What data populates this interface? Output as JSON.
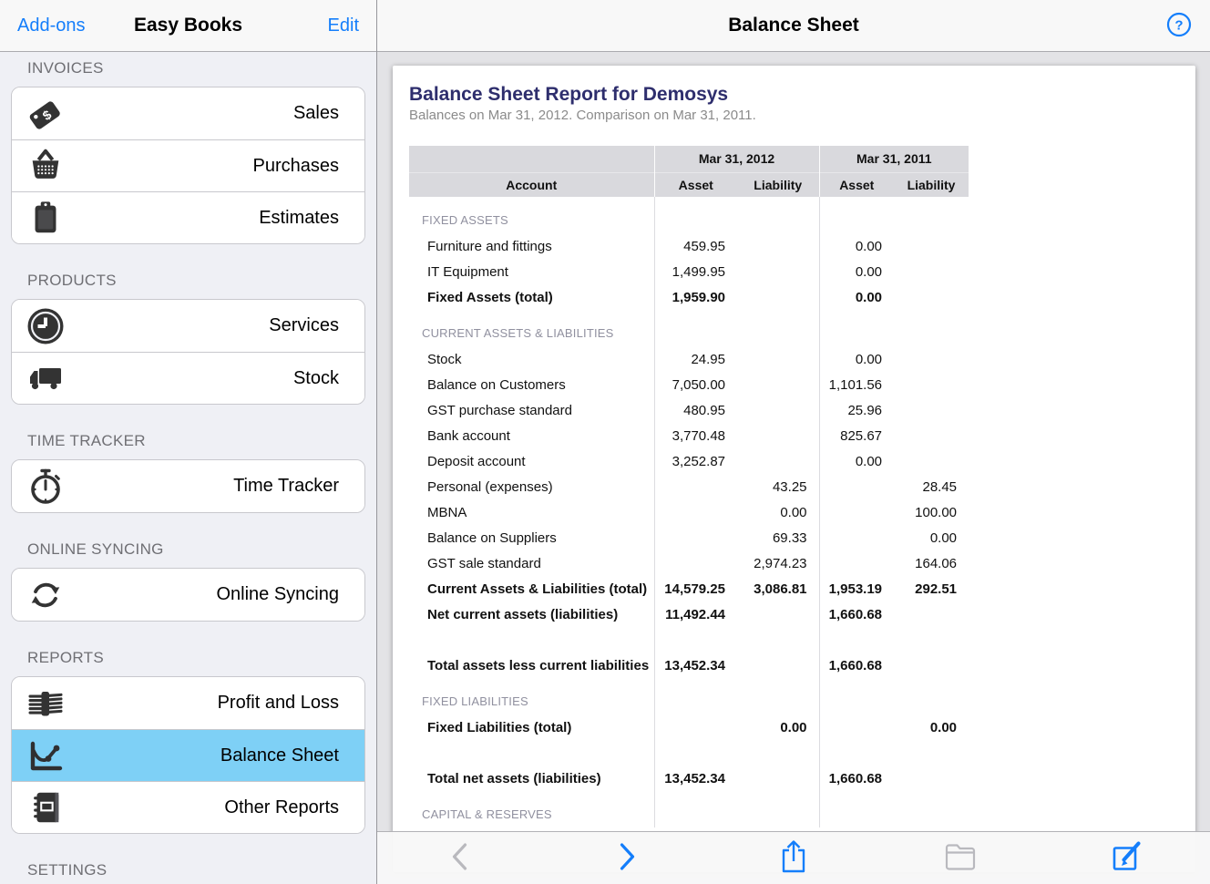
{
  "colors": {
    "accent_blue": "#147efb",
    "selected_row_blue": "#7ed0f6",
    "report_title_navy": "#2e2e6d",
    "table_header_gray": "#d9d9dd",
    "disabled_gray": "#b9b9be"
  },
  "sidebar": {
    "nav": {
      "left_button": "Add-ons",
      "title": "Easy Books",
      "right_button": "Edit"
    },
    "sections": [
      {
        "label": "INVOICES",
        "items": [
          {
            "icon": "price-tag-icon",
            "label": "Sales"
          },
          {
            "icon": "basket-icon",
            "label": "Purchases"
          },
          {
            "icon": "clipboard-icon",
            "label": "Estimates"
          }
        ]
      },
      {
        "label": "PRODUCTS",
        "items": [
          {
            "icon": "clock-icon",
            "label": "Services"
          },
          {
            "icon": "truck-icon",
            "label": "Stock"
          }
        ]
      },
      {
        "label": "TIME TRACKER",
        "items": [
          {
            "icon": "stopwatch-icon",
            "label": "Time Tracker"
          }
        ]
      },
      {
        "label": "ONLINE SYNCING",
        "items": [
          {
            "icon": "sync-icon",
            "label": "Online Syncing"
          }
        ]
      },
      {
        "label": "REPORTS",
        "items": [
          {
            "icon": "banknotes-icon",
            "label": "Profit and Loss"
          },
          {
            "icon": "line-chart-icon",
            "label": "Balance Sheet",
            "selected": true
          },
          {
            "icon": "notebook-icon",
            "label": "Other Reports"
          }
        ]
      },
      {
        "label": "SETTINGS",
        "items": []
      }
    ]
  },
  "main": {
    "nav_title": "Balance Sheet",
    "help_button": {
      "icon": "question-mark-icon",
      "label": "?"
    },
    "report": {
      "title": "Balance Sheet Report for Demosys",
      "subtitle": "Balances on Mar 31, 2012. Comparison on Mar 31, 2011.",
      "table": {
        "period_headers": [
          "Mar 31, 2012",
          "Mar 31, 2011"
        ],
        "column_headers": [
          "Account",
          "Asset",
          "Liability",
          "Asset",
          "Liability"
        ],
        "rows": [
          {
            "type": "section",
            "account": "FIXED ASSETS",
            "values": [
              "",
              "",
              "",
              ""
            ]
          },
          {
            "type": "item",
            "account": "Furniture and fittings",
            "values": [
              "459.95",
              "",
              "0.00",
              ""
            ]
          },
          {
            "type": "item",
            "account": "IT Equipment",
            "values": [
              "1,499.95",
              "",
              "0.00",
              ""
            ]
          },
          {
            "type": "total",
            "account": "Fixed Assets (total)",
            "values": [
              "1,959.90",
              "",
              "0.00",
              ""
            ]
          },
          {
            "type": "section",
            "account": "CURRENT ASSETS & LIABILITIES",
            "values": [
              "",
              "",
              "",
              ""
            ]
          },
          {
            "type": "item",
            "account": "Stock",
            "values": [
              "24.95",
              "",
              "0.00",
              ""
            ]
          },
          {
            "type": "item",
            "account": "Balance on Customers",
            "values": [
              "7,050.00",
              "",
              "1,101.56",
              ""
            ]
          },
          {
            "type": "item",
            "account": "GST purchase standard",
            "values": [
              "480.95",
              "",
              "25.96",
              ""
            ]
          },
          {
            "type": "item",
            "account": "Bank account",
            "values": [
              "3,770.48",
              "",
              "825.67",
              ""
            ]
          },
          {
            "type": "item",
            "account": "Deposit account",
            "values": [
              "3,252.87",
              "",
              "0.00",
              ""
            ]
          },
          {
            "type": "item",
            "account": "Personal (expenses)",
            "values": [
              "",
              "43.25",
              "",
              "28.45"
            ]
          },
          {
            "type": "item",
            "account": "MBNA",
            "values": [
              "",
              "0.00",
              "",
              "100.00"
            ]
          },
          {
            "type": "item",
            "account": "Balance on Suppliers",
            "values": [
              "",
              "69.33",
              "",
              "0.00"
            ]
          },
          {
            "type": "item",
            "account": "GST sale standard",
            "values": [
              "",
              "2,974.23",
              "",
              "164.06"
            ]
          },
          {
            "type": "total",
            "account": "Current Assets & Liabilities (total)",
            "values": [
              "14,579.25",
              "3,086.81",
              "1,953.19",
              "292.51"
            ]
          },
          {
            "type": "total",
            "account": "Net current assets (liabilities)",
            "values": [
              "11,492.44",
              "",
              "1,660.68",
              ""
            ]
          },
          {
            "type": "spacer",
            "account": "",
            "values": [
              "",
              "",
              "",
              ""
            ]
          },
          {
            "type": "total",
            "account": "Total assets less current liabilities",
            "values": [
              "13,452.34",
              "",
              "1,660.68",
              ""
            ]
          },
          {
            "type": "section",
            "account": "FIXED LIABILITIES",
            "values": [
              "",
              "",
              "",
              ""
            ]
          },
          {
            "type": "total",
            "account": "Fixed Liabilities (total)",
            "values": [
              "",
              "0.00",
              "",
              "0.00"
            ]
          },
          {
            "type": "spacer",
            "account": "",
            "values": [
              "",
              "",
              "",
              ""
            ]
          },
          {
            "type": "total",
            "account": "Total net assets (liabilities)",
            "values": [
              "13,452.34",
              "",
              "1,660.68",
              ""
            ]
          },
          {
            "type": "section",
            "account": "CAPITAL & RESERVES",
            "values": [
              "",
              "",
              "",
              ""
            ]
          }
        ]
      }
    }
  },
  "toolbar": {
    "buttons": [
      {
        "name": "back",
        "icon": "chevron-left-icon",
        "enabled": false
      },
      {
        "name": "forward",
        "icon": "chevron-right-icon",
        "enabled": true
      },
      {
        "name": "share",
        "icon": "share-icon",
        "enabled": true
      },
      {
        "name": "folder",
        "icon": "folder-icon",
        "enabled": false
      },
      {
        "name": "compose",
        "icon": "compose-icon",
        "enabled": true
      }
    ]
  }
}
